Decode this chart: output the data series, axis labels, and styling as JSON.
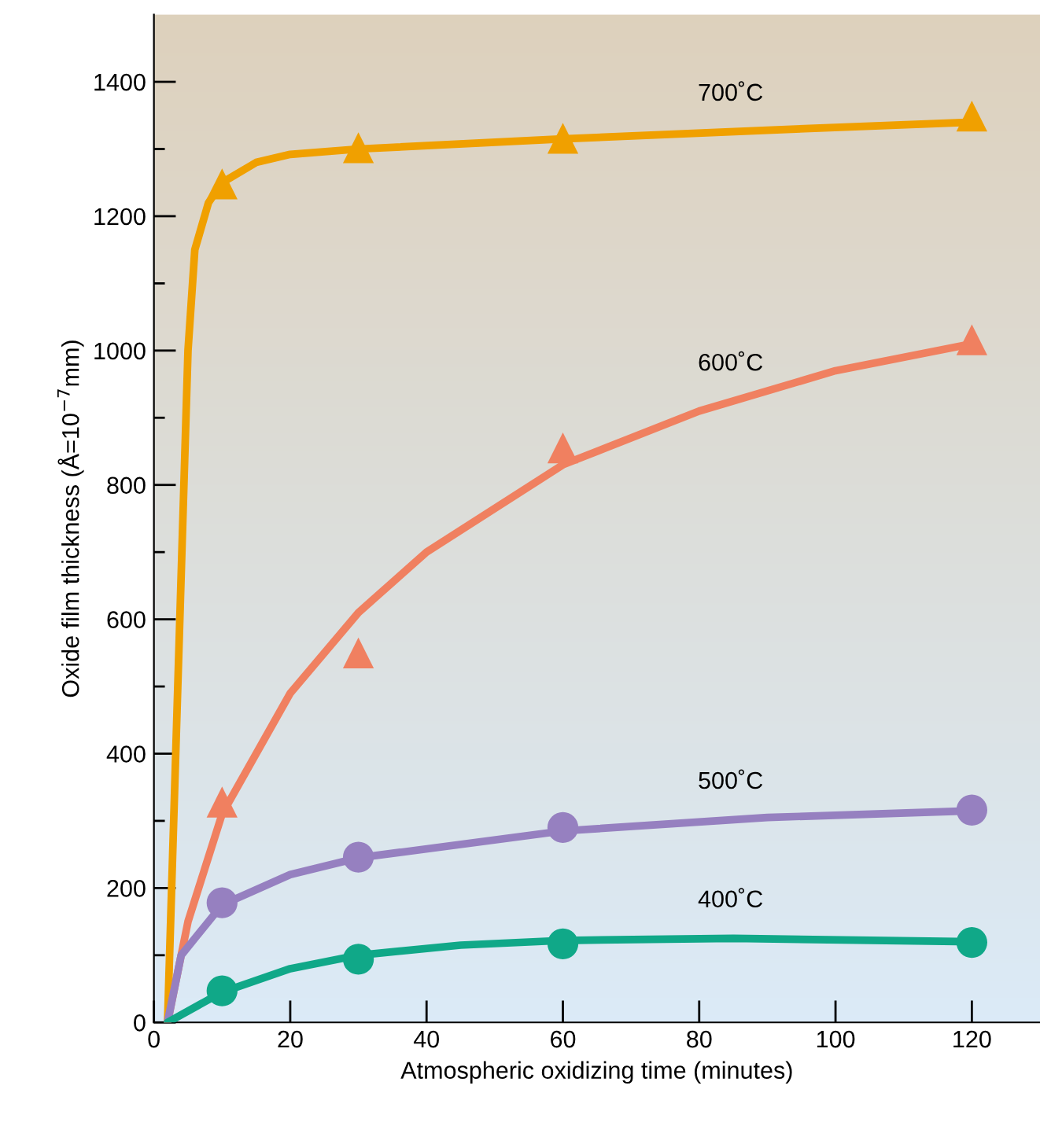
{
  "chart_data": {
    "type": "line",
    "xlabel": "Atmospheric oxidizing time (minutes)",
    "ylabel": "Oxide film thickness (Å=10$^{−7}$mm)",
    "xlim": [
      0,
      130
    ],
    "ylim": [
      0,
      1500
    ],
    "xticks": [
      0,
      20,
      40,
      60,
      80,
      100,
      120
    ],
    "yticks": [
      0,
      {
        "value": 100,
        "label": null
      },
      200,
      {
        "value": 300,
        "label": null
      },
      400,
      {
        "value": 500,
        "label": null
      },
      600,
      {
        "value": 700,
        "label": null
      },
      800,
      {
        "value": 900,
        "label": null
      },
      1000,
      {
        "value": 1100,
        "label": null
      },
      1200,
      {
        "value": 1300,
        "label": null
      },
      1400
    ],
    "grid": false,
    "legend": false,
    "series": [
      {
        "name": "700˚C",
        "color": "#f0a000",
        "marker": "none",
        "x": [
          2,
          5,
          6,
          8,
          10,
          15,
          20,
          30,
          60,
          90,
          120
        ],
        "values": [
          0,
          1000,
          1150,
          1220,
          1250,
          1280,
          1292,
          1300,
          1315,
          1328,
          1340
        ]
      },
      {
        "type": "scatter",
        "color": "#f0a000",
        "marker": "triangle",
        "x": [
          10,
          30,
          60,
          120
        ],
        "values": [
          1248,
          1302,
          1316,
          1349
        ]
      },
      {
        "name": "600˚C",
        "color": "#f08060",
        "marker": "none",
        "x": [
          2,
          5,
          10,
          20,
          30,
          40,
          60,
          80,
          100,
          120
        ],
        "values": [
          0,
          150,
          310,
          490,
          610,
          700,
          830,
          910,
          970,
          1010
        ]
      },
      {
        "type": "scatter",
        "color": "#f08060",
        "marker": "triangle",
        "x": [
          10,
          30,
          60,
          120
        ],
        "values": [
          328,
          550,
          855,
          1016
        ]
      },
      {
        "name": "500˚C",
        "color": "#9680c0",
        "marker": "none",
        "x": [
          2,
          4,
          10,
          20,
          30,
          60,
          90,
          120
        ],
        "values": [
          0,
          100,
          175,
          220,
          245,
          285,
          305,
          315
        ]
      },
      {
        "type": "scatter",
        "color": "#9680c0",
        "marker": "circle",
        "x": [
          10,
          30,
          60,
          120
        ],
        "values": [
          178,
          246,
          290,
          316
        ]
      },
      {
        "name": "400˚C",
        "color": "#10a888",
        "marker": "none",
        "x": [
          2,
          10,
          20,
          30,
          45,
          60,
          85,
          120
        ],
        "values": [
          0,
          45,
          80,
          100,
          115,
          122,
          125,
          120
        ]
      },
      {
        "type": "scatter",
        "color": "#10a888",
        "marker": "circle",
        "x": [
          10,
          30,
          60,
          120
        ],
        "values": [
          47,
          94,
          117,
          119
        ]
      }
    ]
  }
}
